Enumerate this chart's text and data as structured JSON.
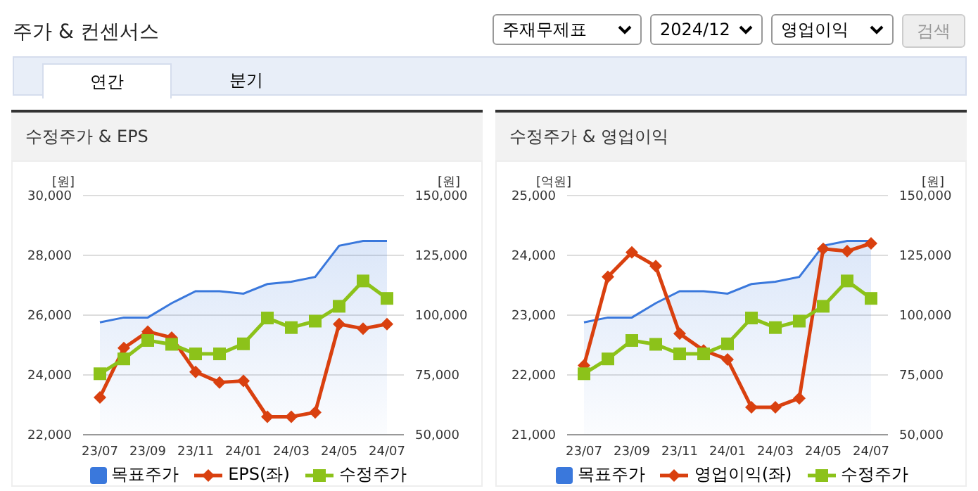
{
  "chart_data": [
    {
      "type": "other",
      "title": "주가 & 컨센서스",
      "annotations": [
        "주재무제표",
        "2024/12",
        "영업이익",
        "검색",
        "연간",
        "분기"
      ]
    },
    {
      "type": "line",
      "title": "수정주가 & EPS",
      "ylabel": "[원]",
      "y2label": "[원]",
      "categories": [
        "23/07",
        null,
        "23/09",
        null,
        "23/11",
        null,
        "24/01",
        null,
        "24/03",
        null,
        "24/05",
        null,
        "24/07"
      ],
      "ylim": [
        22000,
        30000
      ],
      "yticks": [
        {
          "value": 22000,
          "label": "22,000"
        },
        {
          "value": 24000,
          "label": "24,000"
        },
        {
          "value": 26000,
          "label": "26,000"
        },
        {
          "value": 28000,
          "label": "28,000"
        },
        {
          "value": 30000,
          "label": "30,000"
        }
      ],
      "y2lim": [
        50000,
        150000
      ],
      "y2ticks": [
        {
          "value": 50000,
          "label": "50,000"
        },
        {
          "value": 75000,
          "label": "75,000"
        },
        {
          "value": 100000,
          "label": "100,000"
        },
        {
          "value": 125000,
          "label": "125,000"
        },
        {
          "value": 150000,
          "label": "150,000"
        }
      ],
      "grid": "y",
      "legend": "bottom",
      "series": [
        {
          "name": "목표주가",
          "type": "area",
          "axis": "y2",
          "color": "#3a78dc",
          "values": [
            97000,
            99000,
            99000,
            105000,
            110000,
            110000,
            109000,
            113000,
            114000,
            116000,
            129000,
            131000,
            131000
          ]
        },
        {
          "name": "EPS(좌)",
          "type": "line",
          "color": "#d9400f",
          "marker": "diamond",
          "values": [
            23250,
            24900,
            25450,
            25250,
            24100,
            23750,
            23800,
            22600,
            22600,
            22750,
            25700,
            25550,
            25700
          ]
        },
        {
          "name": "수정주가",
          "type": "line",
          "axis": "y2",
          "color": "#8cc21a",
          "marker": "square",
          "values": [
            75500,
            81700,
            89400,
            87800,
            83800,
            83800,
            88000,
            98800,
            94800,
            97500,
            103700,
            114300,
            107000
          ]
        }
      ]
    },
    {
      "type": "line",
      "title": "수정주가 & 영업이익",
      "ylabel": "[억원]",
      "y2label": "[원]",
      "categories": [
        "23/07",
        null,
        "23/09",
        null,
        "23/11",
        null,
        "24/01",
        null,
        "24/03",
        null,
        "24/05",
        null,
        "24/07"
      ],
      "ylim": [
        21000,
        25000
      ],
      "yticks": [
        {
          "value": 21000,
          "label": "21,000"
        },
        {
          "value": 22000,
          "label": "22,000"
        },
        {
          "value": 23000,
          "label": "23,000"
        },
        {
          "value": 24000,
          "label": "24,000"
        },
        {
          "value": 25000,
          "label": "25,000"
        }
      ],
      "y2lim": [
        50000,
        150000
      ],
      "y2ticks": [
        {
          "value": 50000,
          "label": "50,000"
        },
        {
          "value": 75000,
          "label": "75,000"
        },
        {
          "value": 100000,
          "label": "100,000"
        },
        {
          "value": 125000,
          "label": "125,000"
        },
        {
          "value": 150000,
          "label": "150,000"
        }
      ],
      "grid": "y",
      "legend": "bottom",
      "series": [
        {
          "name": "목표주가",
          "type": "area",
          "axis": "y2",
          "color": "#3a78dc",
          "values": [
            97000,
            99000,
            99000,
            105000,
            110000,
            110000,
            109000,
            113000,
            114000,
            116000,
            129000,
            131000,
            131000
          ]
        },
        {
          "name": "영업이익(좌)",
          "type": "line",
          "color": "#d9400f",
          "marker": "diamond",
          "values": [
            22160,
            23640,
            24050,
            23820,
            22690,
            22410,
            22260,
            21460,
            21460,
            21610,
            24110,
            24070,
            24200
          ]
        },
        {
          "name": "수정주가",
          "type": "line",
          "axis": "y2",
          "color": "#8cc21a",
          "marker": "square",
          "values": [
            75500,
            81700,
            89400,
            87800,
            83800,
            83800,
            88000,
            98800,
            94800,
            97500,
            103700,
            114300,
            107000
          ]
        }
      ]
    }
  ]
}
